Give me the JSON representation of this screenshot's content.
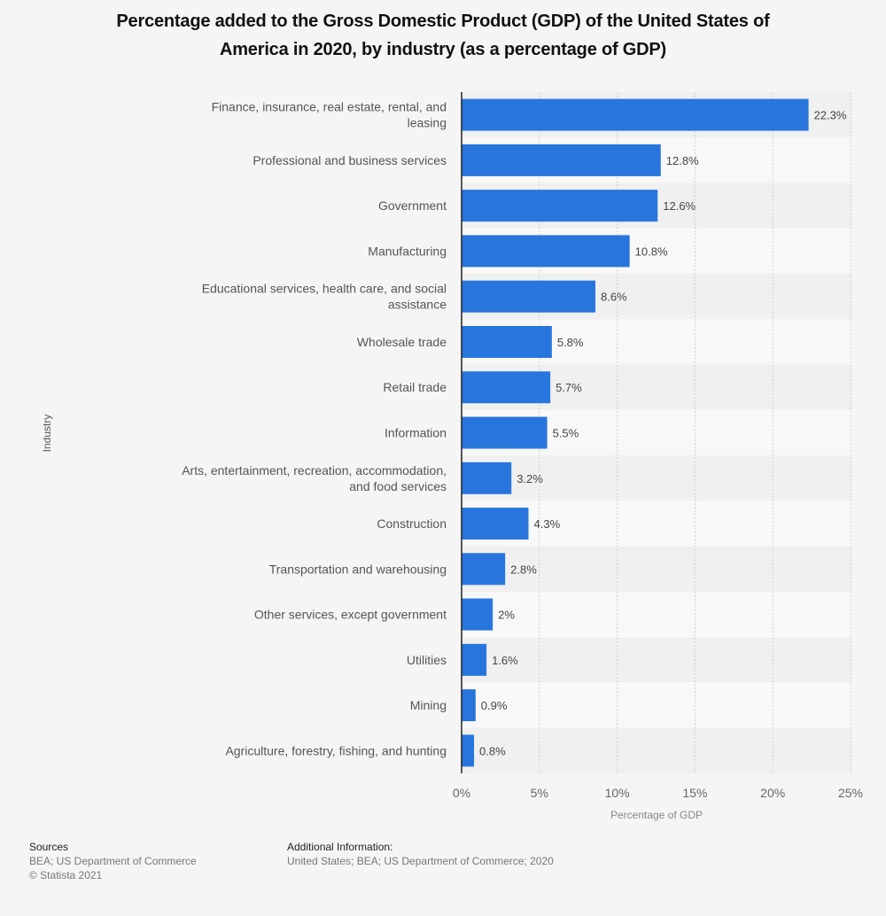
{
  "chart_data": {
    "type": "bar",
    "orientation": "horizontal",
    "title": "Percentage added to the Gross Domestic Product (GDP) of the United States of America in 2020, by industry (as a percentage of GDP)",
    "title_lines": [
      "Percentage added to the Gross Domestic Product (GDP) of the United States of",
      "America in 2020, by industry (as a percentage of GDP)"
    ],
    "xlabel": "Percentage of GDP",
    "ylabel": "Industry",
    "xlim": [
      0,
      25
    ],
    "x_ticks": [
      0,
      5,
      10,
      15,
      20,
      25
    ],
    "x_tick_labels": [
      "0%",
      "5%",
      "10%",
      "15%",
      "20%",
      "25%"
    ],
    "grid": true,
    "bar_color": "#2876dd",
    "categories": [
      [
        "Finance, insurance, real estate, rental, and",
        "leasing"
      ],
      [
        "Professional and business services"
      ],
      [
        "Government"
      ],
      [
        "Manufacturing"
      ],
      [
        "Educational services, health care, and social",
        "assistance"
      ],
      [
        "Wholesale trade"
      ],
      [
        "Retail trade"
      ],
      [
        "Information"
      ],
      [
        "Arts, entertainment, recreation, accommodation,",
        "and food services"
      ],
      [
        "Construction"
      ],
      [
        "Transportation and warehousing"
      ],
      [
        "Other services, except government"
      ],
      [
        "Utilities"
      ],
      [
        "Mining"
      ],
      [
        "Agriculture, forestry, fishing, and hunting"
      ]
    ],
    "values": [
      22.3,
      12.8,
      12.6,
      10.8,
      8.6,
      5.8,
      5.7,
      5.5,
      3.2,
      4.3,
      2.8,
      2,
      1.6,
      0.9,
      0.8
    ],
    "value_labels": [
      "22.3%",
      "12.8%",
      "12.6%",
      "10.8%",
      "8.6%",
      "5.8%",
      "5.7%",
      "5.5%",
      "3.2%",
      "4.3%",
      "2.8%",
      "2%",
      "1.6%",
      "0.9%",
      "0.8%"
    ]
  },
  "footer": {
    "sources_heading": "Sources",
    "sources_line1": "BEA; US Department of Commerce",
    "sources_line2": "© Statista 2021",
    "additional_heading": "Additional Information:",
    "additional_text": "United States; BEA; US Department of Commerce; 2020"
  }
}
